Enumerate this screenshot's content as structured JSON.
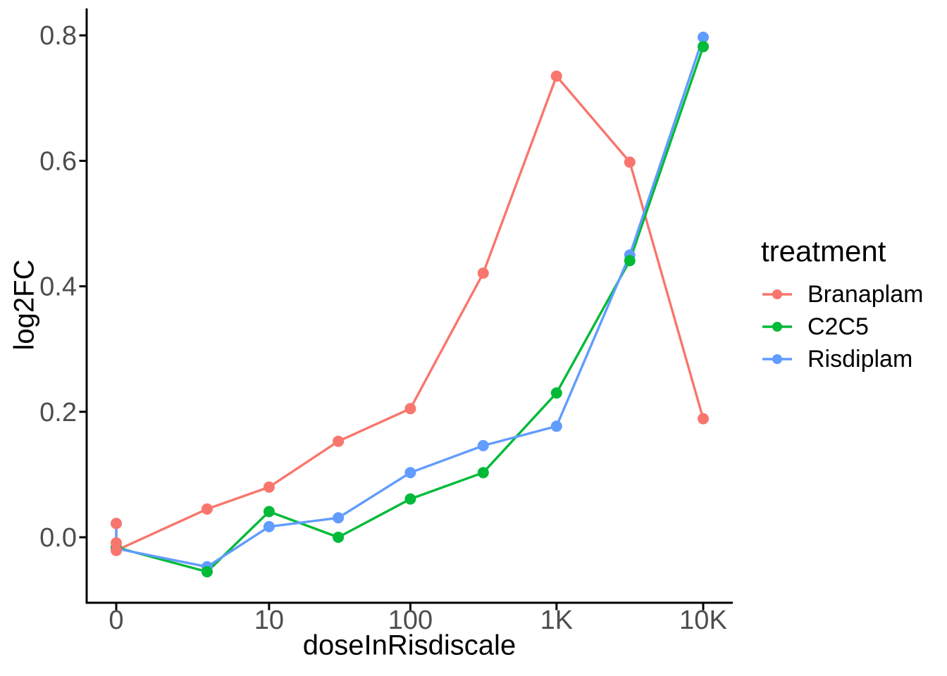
{
  "chart_data": {
    "type": "line",
    "title": "",
    "xlabel": "doseInRisdiscale",
    "ylabel": "log2FC",
    "legend_title": "treatment",
    "legend_position": "right",
    "grid": false,
    "background": "#ffffff",
    "axis_color": "#000000",
    "tick_label_color": "#4d4d4d",
    "x_scale": "log1p",
    "x_ticks": [
      {
        "value": 0,
        "label": "0"
      },
      {
        "value": 10,
        "label": "10"
      },
      {
        "value": 100,
        "label": "100"
      },
      {
        "value": 1000,
        "label": "1K"
      },
      {
        "value": 10000,
        "label": "10K"
      }
    ],
    "y_ticks": [
      {
        "value": 0.0,
        "label": "0.0"
      },
      {
        "value": 0.2,
        "label": "0.2"
      },
      {
        "value": 0.4,
        "label": "0.4"
      },
      {
        "value": 0.6,
        "label": "0.6"
      },
      {
        "value": 0.8,
        "label": "0.8"
      }
    ],
    "xlim": [
      0,
      10000
    ],
    "ylim": [
      -0.105,
      0.843
    ],
    "series": [
      {
        "name": "Branaplam",
        "color": "#F8766D",
        "points": [
          [
            0,
            0.022
          ],
          [
            0,
            -0.009
          ],
          [
            0,
            -0.021
          ],
          [
            3.16,
            0.045
          ],
          [
            10,
            0.08
          ],
          [
            31.6,
            0.153
          ],
          [
            100,
            0.205
          ],
          [
            316,
            0.421
          ],
          [
            1000,
            0.735
          ],
          [
            3160,
            0.598
          ],
          [
            10000,
            0.189
          ]
        ]
      },
      {
        "name": "C2C5",
        "color": "#00BA38",
        "points": [
          [
            0,
            -0.016
          ],
          [
            3.16,
            -0.055
          ],
          [
            10,
            0.041
          ],
          [
            31.6,
            0.0
          ],
          [
            100,
            0.061
          ],
          [
            316,
            0.103
          ],
          [
            1000,
            0.23
          ],
          [
            3160,
            0.441
          ],
          [
            10000,
            0.782
          ]
        ]
      },
      {
        "name": "Risdiplam",
        "color": "#619CFF",
        "points": [
          [
            0,
            0.022
          ],
          [
            0,
            -0.018
          ],
          [
            3.16,
            -0.047
          ],
          [
            10,
            0.017
          ],
          [
            31.6,
            0.031
          ],
          [
            100,
            0.103
          ],
          [
            316,
            0.146
          ],
          [
            1000,
            0.177
          ],
          [
            3160,
            0.45
          ],
          [
            10000,
            0.797
          ]
        ]
      }
    ]
  }
}
